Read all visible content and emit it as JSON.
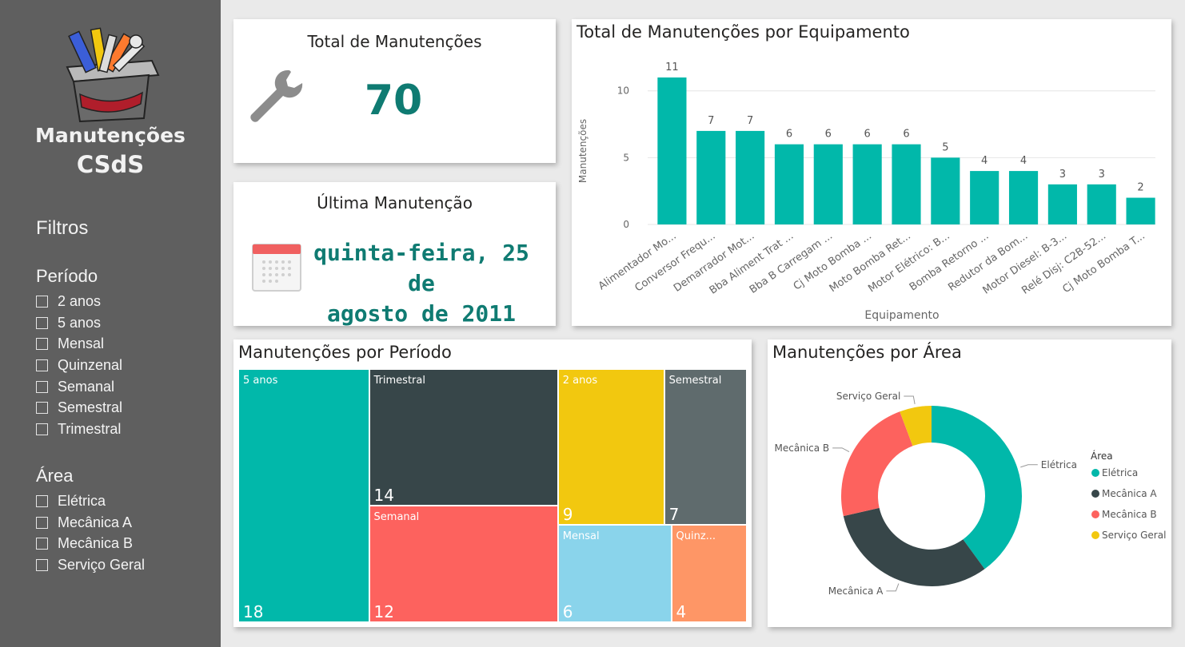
{
  "sidebar": {
    "title_line1": "Manutenções",
    "title_line2": "CSdS",
    "filters_heading": "Filtros",
    "periodo": {
      "title": "Período",
      "options": [
        "2 anos",
        "5 anos",
        "Mensal",
        "Quinzenal",
        "Semanal",
        "Semestral",
        "Trimestral"
      ]
    },
    "area": {
      "title": "Área",
      "options": [
        "Elétrica",
        "Mecânica A",
        "Mecânica B",
        "Serviço Geral"
      ]
    }
  },
  "kpi_total": {
    "title": "Total de Manutenções",
    "value": "70",
    "icon": "wrench-icon"
  },
  "kpi_last": {
    "title": "Última Manutenção",
    "value_line1": "quinta-feira, 25 de",
    "value_line2": "agosto de 2011",
    "icon": "calendar-icon"
  },
  "colors": {
    "teal": "#01b8aa",
    "dark": "#374649",
    "red": "#fd625e",
    "yellow": "#f2c80f",
    "gray": "#5f6b6d",
    "lightblue": "#8ad4eb",
    "orange": "#fe9666",
    "kpi_text": "#0f7b72",
    "sidebar_bg": "#5f5f5f"
  },
  "chart_data": [
    {
      "type": "bar",
      "title": "Total de Manutenções por Equipamento",
      "xlabel": "Equipamento",
      "ylabel": "Manutenções",
      "ylim": [
        0,
        11
      ],
      "yticks": [
        "0",
        "5",
        "10"
      ],
      "grid": true,
      "categories": [
        "Alimentador Mo...",
        "Conversor Frequ...",
        "Demarrador Mot...",
        "Bba Aliment Trat ...",
        "Bba B Carregam ...",
        "Cj Moto Bomba ...",
        "Moto Bomba Ret...",
        "Motor Elétrico: B...",
        "Bomba Retorno ...",
        "Redutor da Bom...",
        "Motor Diesel: B-3...",
        "Relé Disj: C2B-52...",
        "Cj Moto Bomba T..."
      ],
      "values": [
        11,
        7,
        7,
        6,
        6,
        6,
        6,
        5,
        4,
        4,
        3,
        3,
        2
      ],
      "color": "#01b8aa"
    },
    {
      "type": "treemap",
      "title": "Manutenções por Período",
      "items": [
        {
          "name": "5 anos",
          "value": 18,
          "color": "#01b8aa"
        },
        {
          "name": "Trimestral",
          "value": 14,
          "color": "#374649"
        },
        {
          "name": "Semanal",
          "value": 12,
          "color": "#fd625e"
        },
        {
          "name": "2 anos",
          "value": 9,
          "color": "#f2c80f"
        },
        {
          "name": "Semestral",
          "value": 7,
          "color": "#5f6b6d"
        },
        {
          "name": "Mensal",
          "value": 6,
          "color": "#8ad4eb"
        },
        {
          "name": "Quinz...",
          "value": 4,
          "color": "#fe9666"
        }
      ]
    },
    {
      "type": "pie",
      "subtype": "donut",
      "title": "Manutenções por Área",
      "legend_title": "Área",
      "legend_position": "right",
      "slices": [
        {
          "name": "Elétrica",
          "value": 28,
          "color": "#01b8aa"
        },
        {
          "name": "Mecânica A",
          "value": 22,
          "color": "#374649"
        },
        {
          "name": "Mecânica B",
          "value": 16,
          "color": "#fd625e"
        },
        {
          "name": "Serviço Geral",
          "value": 4,
          "color": "#f2c80f"
        }
      ]
    }
  ]
}
